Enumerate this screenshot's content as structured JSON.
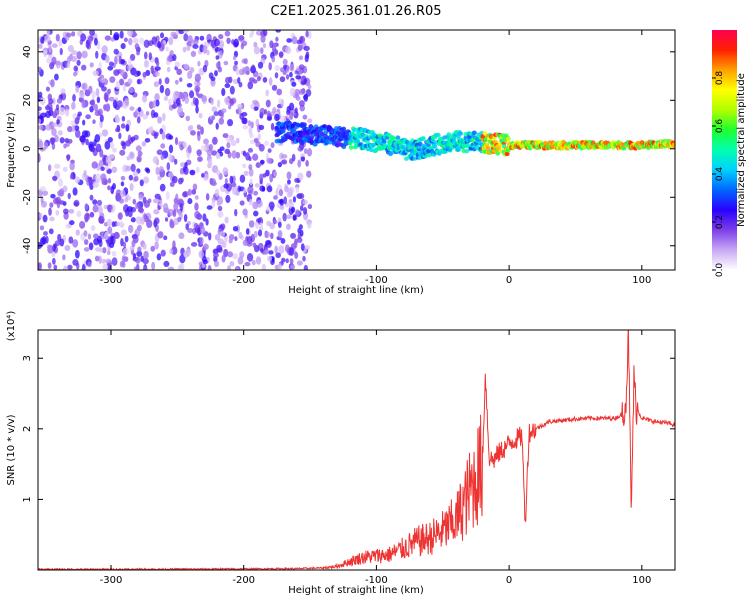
{
  "title": "C2E1.2025.361.01.26.R05",
  "chart_data": [
    {
      "type": "heatmap",
      "xlabel": "Height of straight line (km)",
      "ylabel": "Frequency (Hz)",
      "xlim": [
        -355,
        125
      ],
      "ylim": [
        -50,
        49
      ],
      "x_ticks": [
        -300,
        -200,
        -100,
        0,
        100
      ],
      "y_ticks": [
        -40,
        -20,
        0,
        20,
        40
      ],
      "grid": false,
      "colorbar": {
        "label": "Normalized spectral amplitude",
        "range": [
          0,
          1
        ],
        "ticks": [
          0,
          0.2,
          0.4,
          0.6,
          0.8
        ],
        "colors": [
          "#ffffff",
          "#c9a8f5",
          "#7b3fe8",
          "#2a00ff",
          "#0066ff",
          "#00d0ff",
          "#00ffb0",
          "#20ff30",
          "#b0ff00",
          "#ffff00",
          "#ffa000",
          "#ff2000",
          "#ff0050"
        ]
      },
      "features": {
        "noise_region_x": [
          -355,
          -150
        ],
        "carrier_line_x": [
          -175,
          125
        ],
        "carrier_freq_hz": [
          [
            -175,
            7
          ],
          [
            -150,
            6
          ],
          [
            -130,
            5
          ],
          [
            -110,
            4
          ],
          [
            -90,
            2
          ],
          [
            -75,
            -1
          ],
          [
            -60,
            1
          ],
          [
            -45,
            3
          ],
          [
            -30,
            3
          ],
          [
            -10,
            2
          ],
          [
            0,
            1.5
          ],
          [
            50,
            1.5
          ],
          [
            100,
            1.5
          ],
          [
            125,
            2
          ]
        ]
      }
    },
    {
      "type": "line",
      "xlabel": "Height of straight line (km)",
      "ylabel": "SNR (10 * v/v)",
      "y_multiplier": "(x10⁴)",
      "xlim": [
        -355,
        125
      ],
      "ylim": [
        0,
        3.4
      ],
      "x_ticks": [
        -300,
        -200,
        -100,
        0,
        100
      ],
      "y_ticks": [
        1,
        2,
        3
      ],
      "grid": false,
      "series": [
        {
          "color": "#ee3333",
          "x": [
            -355,
            -300,
            -250,
            -200,
            -160,
            -140,
            -130,
            -120,
            -110,
            -100,
            -90,
            -80,
            -70,
            -60,
            -50,
            -40,
            -35,
            -30,
            -25,
            -20,
            -18,
            -15,
            -12,
            -10,
            -8,
            -5,
            -2,
            0,
            5,
            10,
            12,
            15,
            20,
            25,
            30,
            40,
            50,
            60,
            70,
            80,
            85,
            88,
            90,
            92,
            94,
            96,
            100,
            110,
            120,
            125
          ],
          "y": [
            0.01,
            0.01,
            0.012,
            0.015,
            0.02,
            0.03,
            0.05,
            0.12,
            0.18,
            0.2,
            0.22,
            0.3,
            0.4,
            0.45,
            0.55,
            0.7,
            0.9,
            1.1,
            1.3,
            1.5,
            2.8,
            1.6,
            1.55,
            1.6,
            1.65,
            1.7,
            1.75,
            1.8,
            1.85,
            1.9,
            0.6,
            1.95,
            2.0,
            2.05,
            2.1,
            2.12,
            2.14,
            2.15,
            2.15,
            2.15,
            2.2,
            2.4,
            3.35,
            0.75,
            2.7,
            2.3,
            2.15,
            2.1,
            2.08,
            2.05
          ]
        }
      ]
    }
  ]
}
